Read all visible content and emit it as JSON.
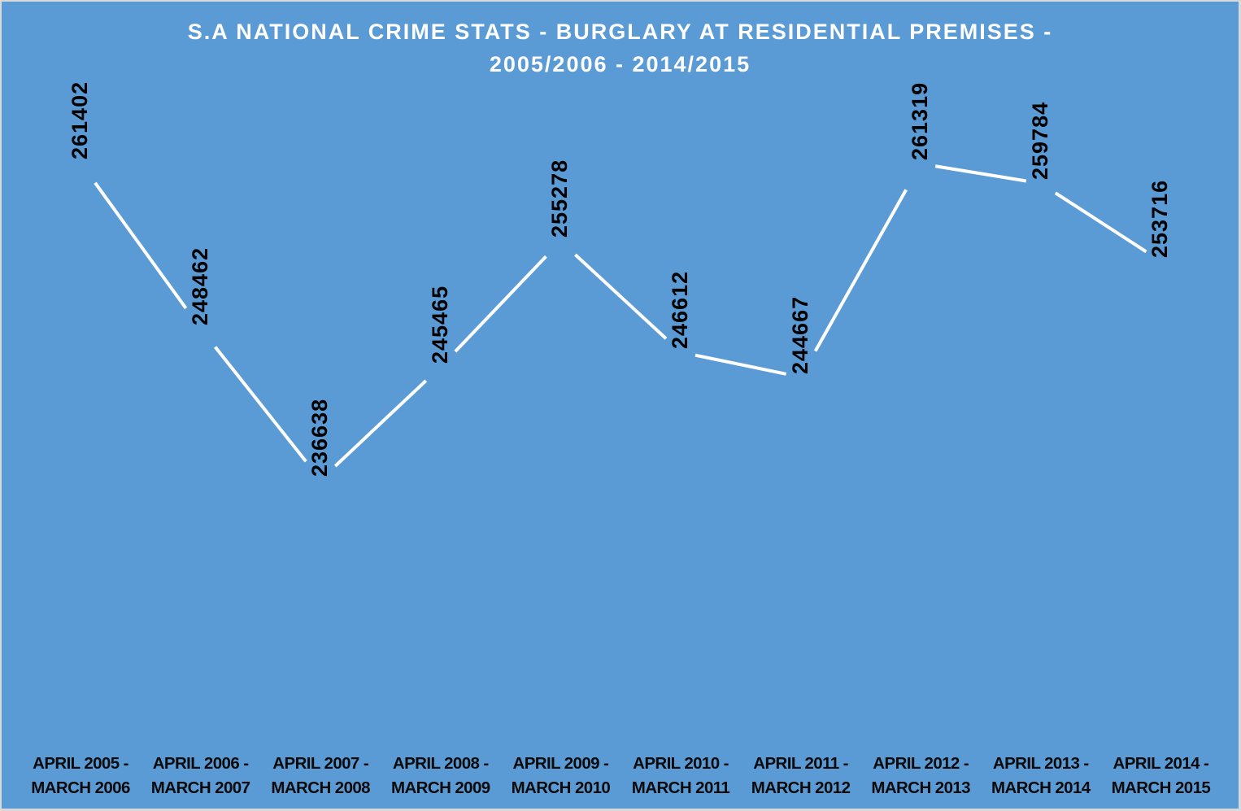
{
  "chart_data": {
    "type": "line",
    "title": "S.A NATIONAL CRIME STATS - BURGLARY AT RESIDENTIAL PREMISES -",
    "subtitle": "2005/2006 - 2014/2015",
    "xlabel": "",
    "ylabel": "",
    "grid": false,
    "legend": "none",
    "drop_lines": true,
    "data_labels": "rotated vertical above points",
    "categories": [
      [
        "APRIL 2005 -",
        "MARCH 2006"
      ],
      [
        "APRIL 2006 -",
        "MARCH 2007"
      ],
      [
        "APRIL 2007 -",
        "MARCH 2008"
      ],
      [
        "APRIL 2008 -",
        "MARCH 2009"
      ],
      [
        "APRIL 2009 -",
        "MARCH 2010"
      ],
      [
        "APRIL 2010 -",
        "MARCH 2011"
      ],
      [
        "APRIL 2011 -",
        "MARCH 2012"
      ],
      [
        "APRIL 2012 -",
        "MARCH 2013"
      ],
      [
        "APRIL 2013 -",
        "MARCH 2014"
      ],
      [
        "APRIL 2014 -",
        "MARCH 2015"
      ]
    ],
    "series": [
      {
        "name": "Burglary at residential premises",
        "values": [
          261402,
          248462,
          236638,
          245465,
          255278,
          246612,
          244667,
          261319,
          259784,
          253716
        ]
      }
    ],
    "value_labels": [
      "261402",
      "248462",
      "236638",
      "245465",
      "255278",
      "246612",
      "244667",
      "261319",
      "259784",
      "253716"
    ],
    "colors": {
      "background": "#5b9bd5",
      "border": "#d9d9d9",
      "line": "#ffffff",
      "title": "#ffffff",
      "labels": "#000000"
    }
  }
}
